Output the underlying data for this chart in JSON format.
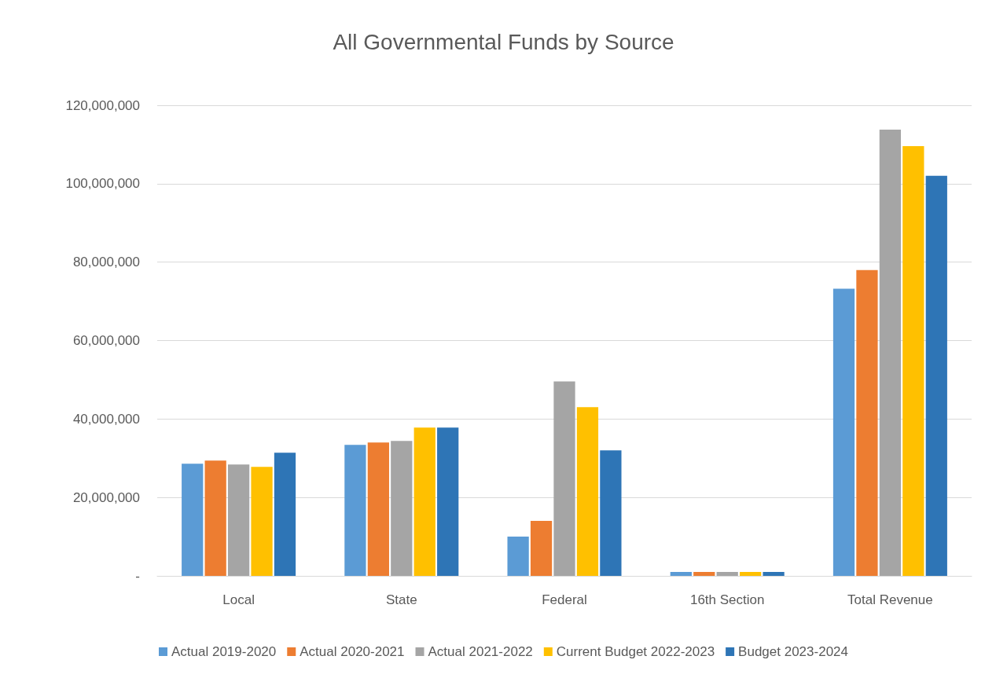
{
  "chart_data": {
    "type": "bar",
    "title": "All Governmental Funds by Source",
    "categories": [
      "Local",
      "State",
      "Federal",
      "16th Section",
      "Total Revenue"
    ],
    "series": [
      {
        "name": "Actual 2019-2020",
        "color": "#5b9bd5",
        "values": [
          28600000,
          33400000,
          10000000,
          1000000,
          73200000
        ]
      },
      {
        "name": "Actual 2020-2021",
        "color": "#ed7d31",
        "values": [
          29400000,
          34000000,
          14000000,
          1000000,
          78000000
        ]
      },
      {
        "name": "Actual 2021-2022",
        "color": "#a5a5a5",
        "values": [
          28400000,
          34400000,
          49600000,
          1000000,
          113800000
        ]
      },
      {
        "name": "Current Budget 2022-2023",
        "color": "#ffc000",
        "values": [
          27800000,
          37800000,
          43000000,
          1000000,
          109600000
        ]
      },
      {
        "name": "Budget 2023-2024",
        "color": "#2e75b6",
        "values": [
          31400000,
          37800000,
          32000000,
          1000000,
          102000000
        ]
      }
    ],
    "ylim": [
      0,
      120000000
    ],
    "yticks": [
      {
        "value": 0,
        "label": "-"
      },
      {
        "value": 20000000,
        "label": "20,000,000"
      },
      {
        "value": 40000000,
        "label": "40,000,000"
      },
      {
        "value": 60000000,
        "label": "60,000,000"
      },
      {
        "value": 80000000,
        "label": "80,000,000"
      },
      {
        "value": 100000000,
        "label": "100,000,000"
      },
      {
        "value": 120000000,
        "label": "120,000,000"
      }
    ],
    "grid": "y",
    "legend": "bottom"
  }
}
